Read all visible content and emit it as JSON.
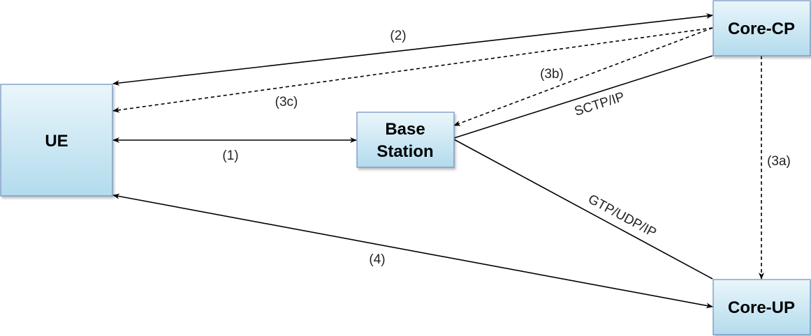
{
  "colors": {
    "box_top": "#eaf6fb",
    "box_bottom": "#b2dbed",
    "box_border": "#6c8ebf",
    "line": "#000000"
  },
  "nodes": {
    "ue": "UE",
    "base_station_line1": "Base",
    "base_station_line2": "Station",
    "core_cp": "Core-CP",
    "core_up": "Core-UP"
  },
  "edges": {
    "step1": "(1)",
    "step2": "(2)",
    "step3a": "(3a)",
    "step3b": "(3b)",
    "step3c": "(3c)",
    "step4": "(4)",
    "sctp_ip": "SCTP/IP",
    "gtp_udp_ip": "GTP/UDP/IP"
  }
}
